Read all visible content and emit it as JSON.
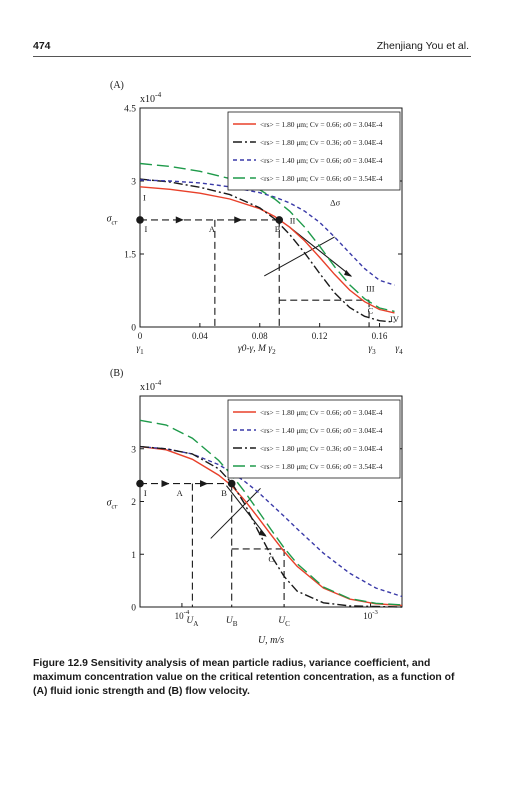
{
  "page": {
    "number": "474",
    "running_head": "Zhenjiang You et al."
  },
  "caption": {
    "label": "Figure 12.9",
    "text": "Sensitivity analysis of mean particle radius, variance coefficient, and maximum concentration value on the critical retention concentration, as a function of (A) fluid ionic strength and (B) flow velocity."
  },
  "chart_data": [
    {
      "panel": "(A)",
      "type": "line",
      "ylabel": "σ_cr",
      "y_multiplier": "x10^-4",
      "ylim": [
        0,
        4.5
      ],
      "xlim": [
        0,
        0.175
      ],
      "xticks": [
        0,
        0.04,
        0.08,
        0.12,
        0.16
      ],
      "xtick_labels": [
        "0",
        "0.04",
        "0.08",
        "0.12",
        "0.16"
      ],
      "yticks": [
        0,
        1.5,
        3,
        4.5
      ],
      "ytick_labels": [
        "0",
        "1.5",
        "3",
        "4.5"
      ],
      "x_sublabels": [
        {
          "x": 0.0,
          "text": "γ1"
        },
        {
          "x": 0.078,
          "text": "γ0-γ, M γ2"
        },
        {
          "x": 0.155,
          "text": "γ3"
        },
        {
          "x": 0.173,
          "text": "γ4"
        }
      ],
      "series": [
        {
          "name": "<r_s> = 1.80 μm; C_v = 0.66; σ0 = 3.04E-4",
          "color": "#e8402a",
          "dash": "solid",
          "x": [
            0,
            0.02,
            0.04,
            0.06,
            0.08,
            0.09,
            0.1,
            0.11,
            0.12,
            0.13,
            0.14,
            0.15,
            0.16,
            0.17
          ],
          "y": [
            2.88,
            2.83,
            2.75,
            2.63,
            2.43,
            2.27,
            2.05,
            1.77,
            1.43,
            1.08,
            0.76,
            0.52,
            0.36,
            0.29
          ]
        },
        {
          "name": "<r_s> = 1.80 μm; C_v = 0.36; σ0 = 3.04E-4",
          "color": "#1a1a1a",
          "dash": "dashdot",
          "x": [
            0,
            0.02,
            0.04,
            0.06,
            0.08,
            0.09,
            0.1,
            0.11,
            0.12,
            0.13,
            0.14,
            0.15,
            0.16,
            0.17
          ],
          "y": [
            3.04,
            2.98,
            2.87,
            2.72,
            2.45,
            2.22,
            1.9,
            1.52,
            1.1,
            0.7,
            0.4,
            0.22,
            0.13,
            0.1
          ]
        },
        {
          "name": "<r_s> = 1.40 μm; C_v = 0.66; σ0 = 3.04E-4",
          "color": "#3a3aa8",
          "dash": "shortdash",
          "x": [
            0,
            0.02,
            0.04,
            0.06,
            0.08,
            0.09,
            0.1,
            0.11,
            0.12,
            0.13,
            0.14,
            0.15,
            0.16,
            0.17
          ],
          "y": [
            3.02,
            3.0,
            2.96,
            2.88,
            2.76,
            2.67,
            2.55,
            2.38,
            2.15,
            1.85,
            1.52,
            1.2,
            0.96,
            0.86
          ]
        },
        {
          "name": "<r_s> = 1.80 μm; C_v = 0.66; σ0 = 3.54E-4",
          "color": "#1e9a4a",
          "dash": "longdash",
          "x": [
            0,
            0.02,
            0.04,
            0.06,
            0.08,
            0.09,
            0.1,
            0.11,
            0.12,
            0.13,
            0.14,
            0.15,
            0.16,
            0.17
          ],
          "y": [
            3.36,
            3.3,
            3.2,
            3.05,
            2.82,
            2.63,
            2.38,
            2.05,
            1.66,
            1.24,
            0.87,
            0.58,
            0.39,
            0.32
          ]
        }
      ],
      "annotations": [
        {
          "text": "I",
          "x": 0.002,
          "y": 2.6
        },
        {
          "text": "I",
          "x": 0.003,
          "y": 1.95
        },
        {
          "text": "A",
          "x": 0.046,
          "y": 1.95
        },
        {
          "text": "B",
          "x": 0.09,
          "y": 1.95
        },
        {
          "text": "II",
          "x": 0.1,
          "y": 2.13
        },
        {
          "text": "Δσ",
          "x": 0.127,
          "y": 2.5
        },
        {
          "text": "III",
          "x": 0.151,
          "y": 0.73
        },
        {
          "text": "C",
          "x": 0.152,
          "y": 0.28
        },
        {
          "text": "IV",
          "x": 0.167,
          "y": 0.1
        }
      ],
      "guides": {
        "arrow_y": 2.2,
        "arrow_x": [
          0,
          0.093
        ],
        "vertical_A": 0.05,
        "vertical_B": 0.093,
        "vertical_C": 0.153,
        "step_y": 0.55,
        "markers": [
          [
            0,
            2.2
          ],
          [
            0.093,
            2.2
          ]
        ]
      }
    },
    {
      "panel": "(B)",
      "type": "line",
      "ylabel": "σ_cr",
      "y_multiplier": "x10^-4",
      "ylim": [
        0,
        4
      ],
      "xlim": [
        0,
        1
      ],
      "x_scale": "log (normalized)",
      "yticks": [
        0,
        1,
        2,
        3
      ],
      "ytick_labels": [
        "0",
        "1",
        "2",
        "3"
      ],
      "xticks": [
        0.16,
        0.88
      ],
      "xtick_labels": [
        "10^-4",
        "10^-3"
      ],
      "x_sublabels": [
        {
          "x": 0.2,
          "text": "U_A"
        },
        {
          "x": 0.35,
          "text": "U_B"
        },
        {
          "x": 0.55,
          "text": "U_C"
        }
      ],
      "xlabel": "U, m/s",
      "series": [
        {
          "name": "<r_s> = 1.80 μm; C_v = 0.66; σ0 = 3.04E-4",
          "color": "#e8402a",
          "dash": "solid",
          "x": [
            0,
            0.1,
            0.2,
            0.3,
            0.35,
            0.4,
            0.45,
            0.5,
            0.55,
            0.6,
            0.7,
            0.8,
            0.9,
            1.0
          ],
          "y": [
            3.04,
            2.98,
            2.8,
            2.5,
            2.3,
            2.02,
            1.7,
            1.37,
            1.05,
            0.77,
            0.36,
            0.15,
            0.06,
            0.03
          ]
        },
        {
          "name": "<r_s> = 1.40 μm; C_v = 0.66; σ0 = 3.04E-4",
          "color": "#3a3aa8",
          "dash": "shortdash",
          "x": [
            0,
            0.1,
            0.2,
            0.3,
            0.35,
            0.4,
            0.45,
            0.5,
            0.55,
            0.6,
            0.7,
            0.8,
            0.9,
            1.0
          ],
          "y": [
            3.04,
            3.0,
            2.9,
            2.7,
            2.55,
            2.38,
            2.18,
            1.95,
            1.72,
            1.48,
            1.02,
            0.64,
            0.36,
            0.2
          ]
        },
        {
          "name": "<r_s> = 1.80 μm; C_v = 0.36; σ0 = 3.04E-4",
          "color": "#1a1a1a",
          "dash": "dashdot",
          "x": [
            0,
            0.1,
            0.2,
            0.3,
            0.35,
            0.4,
            0.45,
            0.5,
            0.55,
            0.6,
            0.7,
            0.8,
            0.9,
            1.0
          ],
          "y": [
            3.04,
            3.0,
            2.9,
            2.62,
            2.35,
            1.95,
            1.45,
            0.98,
            0.58,
            0.3,
            0.08,
            0.02,
            0.01,
            0.0
          ]
        },
        {
          "name": "<r_s> = 1.80 μm; C_v = 0.66; σ0 = 3.54E-4",
          "color": "#1e9a4a",
          "dash": "longdash",
          "x": [
            0,
            0.1,
            0.2,
            0.3,
            0.35,
            0.4,
            0.45,
            0.5,
            0.55,
            0.6,
            0.7,
            0.8,
            0.9,
            1.0
          ],
          "y": [
            3.54,
            3.45,
            3.2,
            2.78,
            2.5,
            2.18,
            1.83,
            1.47,
            1.12,
            0.82,
            0.38,
            0.16,
            0.07,
            0.04
          ]
        }
      ],
      "annotations": [
        {
          "text": "I",
          "x": 0.015,
          "y": 2.1
        },
        {
          "text": "A",
          "x": 0.14,
          "y": 2.1
        },
        {
          "text": "B",
          "x": 0.31,
          "y": 2.1
        },
        {
          "text": "Δσ",
          "x": 0.47,
          "y": 2.45
        },
        {
          "text": "C",
          "x": 0.49,
          "y": 0.85
        }
      ],
      "guides": {
        "arrow_y": 2.34,
        "arrow_x": [
          0,
          0.35
        ],
        "vertical_A": 0.2,
        "vertical_B": 0.35,
        "vertical_C": 0.55,
        "step_y": 1.1,
        "markers": [
          [
            0,
            2.34
          ],
          [
            0.35,
            2.34
          ]
        ]
      }
    }
  ]
}
